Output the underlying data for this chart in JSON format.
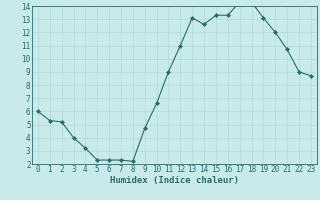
{
  "x": [
    0,
    1,
    2,
    3,
    4,
    5,
    6,
    7,
    8,
    9,
    10,
    11,
    12,
    13,
    14,
    15,
    16,
    17,
    18,
    19,
    20,
    21,
    22,
    23
  ],
  "y": [
    6.0,
    5.3,
    5.2,
    4.0,
    3.2,
    2.3,
    2.3,
    2.3,
    2.2,
    4.7,
    6.6,
    9.0,
    11.0,
    13.1,
    12.6,
    13.3,
    13.3,
    14.3,
    14.3,
    13.1,
    12.0,
    10.7,
    9.0,
    8.7
  ],
  "line_color": "#2a6b6b",
  "marker": "D",
  "marker_size": 2.0,
  "bg_color": "#c8eaea",
  "grid_color": "#b0d8d8",
  "xlabel": "Humidex (Indice chaleur)",
  "ylim": [
    2,
    14
  ],
  "xlim": [
    -0.5,
    23.5
  ],
  "yticks": [
    2,
    3,
    4,
    5,
    6,
    7,
    8,
    9,
    10,
    11,
    12,
    13,
    14
  ],
  "xticks": [
    0,
    1,
    2,
    3,
    4,
    5,
    6,
    7,
    8,
    9,
    10,
    11,
    12,
    13,
    14,
    15,
    16,
    17,
    18,
    19,
    20,
    21,
    22,
    23
  ],
  "tick_fontsize": 5.5,
  "label_fontsize": 6.5,
  "axis_color": "#2a6b6b",
  "line_width": 0.8
}
